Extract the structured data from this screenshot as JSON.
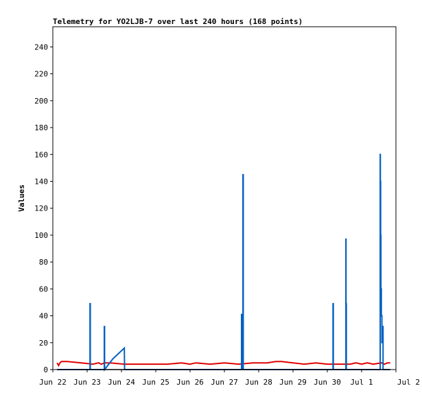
{
  "chart_data": {
    "type": "line",
    "title": "Telemetry for YO2LJB-7 over last 240 hours (168 points)",
    "xlabel": "",
    "ylabel": "Values",
    "ylim": [
      0,
      255
    ],
    "xlim": [
      0,
      240
    ],
    "grid": false,
    "y_ticks": [
      0,
      20,
      40,
      60,
      80,
      100,
      120,
      140,
      160,
      180,
      200,
      220,
      240
    ],
    "x_ticks": [
      {
        "label": "Jun 22",
        "hours": 0
      },
      {
        "label": "Jun 23",
        "hours": 24
      },
      {
        "label": "Jun 24",
        "hours": 48
      },
      {
        "label": "Jun 25",
        "hours": 72
      },
      {
        "label": "Jun 26",
        "hours": 96
      },
      {
        "label": "Jun 27",
        "hours": 120
      },
      {
        "label": "Jun 28",
        "hours": 144
      },
      {
        "label": "Jun 29",
        "hours": 168
      },
      {
        "label": "Jun 30",
        "hours": 192
      },
      {
        "label": "Jul 1",
        "hours": 216
      },
      {
        "label": "Jul 2",
        "hours": 240
      }
    ],
    "series": [
      {
        "color": "#e00000",
        "x": [
          3,
          4,
          5,
          6,
          10,
          20,
          28,
          32,
          34,
          36,
          40,
          50,
          60,
          70,
          80,
          90,
          96,
          100,
          110,
          120,
          130,
          140,
          150,
          156,
          160,
          168,
          176,
          184,
          192,
          200,
          208,
          212,
          216,
          220,
          224,
          230,
          232,
          234,
          236
        ],
        "y": [
          5,
          3,
          5,
          6,
          6,
          5,
          4,
          5,
          4,
          5,
          5,
          4,
          4,
          4,
          4,
          5,
          4,
          5,
          4,
          5,
          4,
          5,
          5,
          6,
          6,
          5,
          4,
          5,
          4,
          4,
          4,
          5,
          4,
          5,
          4,
          5,
          4,
          5,
          5
        ]
      },
      {
        "color": "#0060c0",
        "x": [
          3,
          26,
          26,
          26.2,
          26.2,
          36,
          36,
          36.2,
          36.2,
          42,
          50,
          50,
          50.2,
          50.2,
          132,
          132,
          132.1,
          132.1,
          133,
          133,
          133.2,
          133.2,
          196,
          196,
          196.2,
          196.2,
          205,
          205,
          205.1,
          205.1,
          205.3,
          205.3,
          229,
          229,
          229.1,
          229.1,
          229.3,
          229.3,
          229.5,
          229.5,
          229.8,
          229.8,
          230.2,
          230.2,
          230.5,
          230.5,
          231,
          231,
          231.2,
          231.2,
          236
        ],
        "y": [
          0,
          0,
          49,
          49,
          0,
          0,
          32,
          32,
          0,
          8,
          16,
          16,
          0,
          0,
          0,
          41,
          41,
          0,
          0,
          145,
          145,
          0,
          0,
          49,
          49,
          0,
          0,
          97,
          97,
          49,
          49,
          0,
          0,
          160,
          160,
          140,
          140,
          100,
          100,
          60,
          60,
          40,
          40,
          20,
          20,
          32,
          32,
          0,
          0,
          0,
          0
        ]
      },
      {
        "color": "#000000",
        "x": [
          3,
          236
        ],
        "y": [
          0,
          0
        ]
      }
    ]
  }
}
